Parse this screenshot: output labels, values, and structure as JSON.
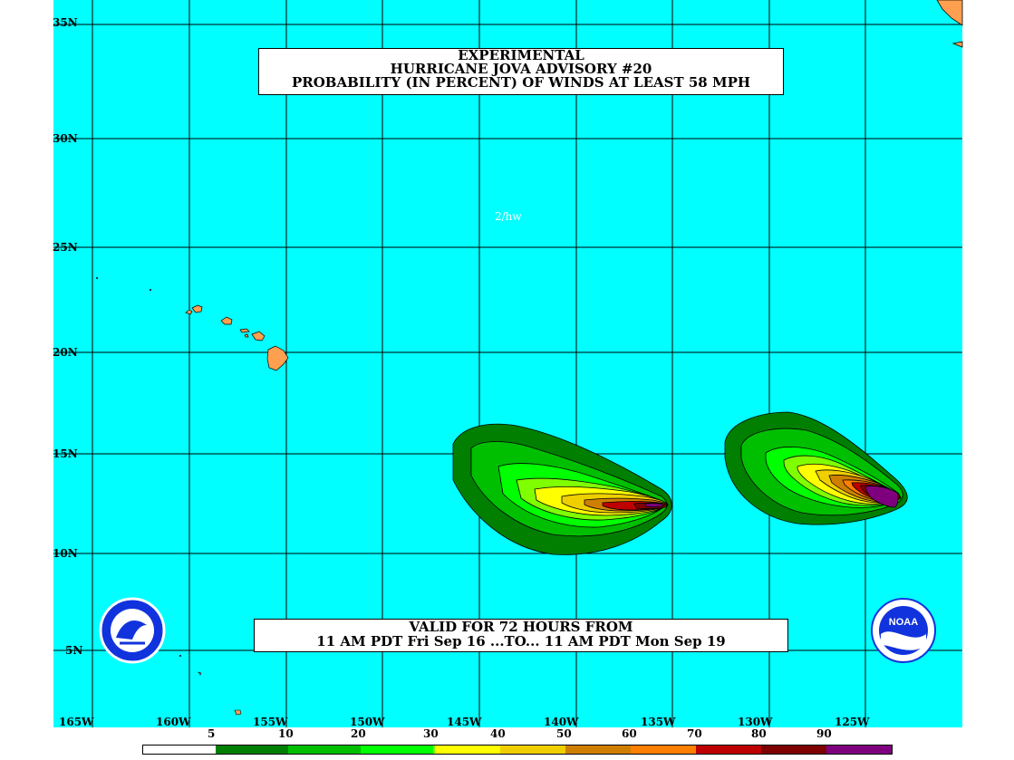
{
  "title": {
    "line1": "EXPERIMENTAL",
    "line2": "HURRICANE JOVA ADVISORY #20",
    "line3": "PROBABILITY (IN PERCENT) OF WINDS AT LEAST 58 MPH"
  },
  "valid": {
    "line1": "VALID FOR 72 HOURS FROM",
    "line2": "11 AM PDT Fri Sep 16 ...TO... 11 AM PDT Mon Sep 19"
  },
  "initials": "2/hw",
  "lat_labels": [
    "35N",
    "30N",
    "25N",
    "20N",
    "15N",
    "10N",
    "5N"
  ],
  "lon_labels": [
    "165W",
    "160W",
    "155W",
    "150W",
    "145W",
    "140W",
    "135W",
    "130W",
    "125W"
  ],
  "legend": {
    "values": [
      "5",
      "10",
      "20",
      "30",
      "40",
      "50",
      "60",
      "70",
      "80",
      "90"
    ],
    "colors": [
      "#ffffff",
      "#007f00",
      "#00bf00",
      "#00ff00",
      "#7fff00",
      "#ffff00",
      "#efcf00",
      "#cf7f00",
      "#ff7f00",
      "#bf0000",
      "#7f0000",
      "#7f007f"
    ]
  },
  "colors": {
    "ocean": "#00ffff",
    "land": "#ff9f50",
    "grid": "#000000"
  },
  "logos": {
    "nws": "nws-logo",
    "noaa": "NOAA"
  }
}
